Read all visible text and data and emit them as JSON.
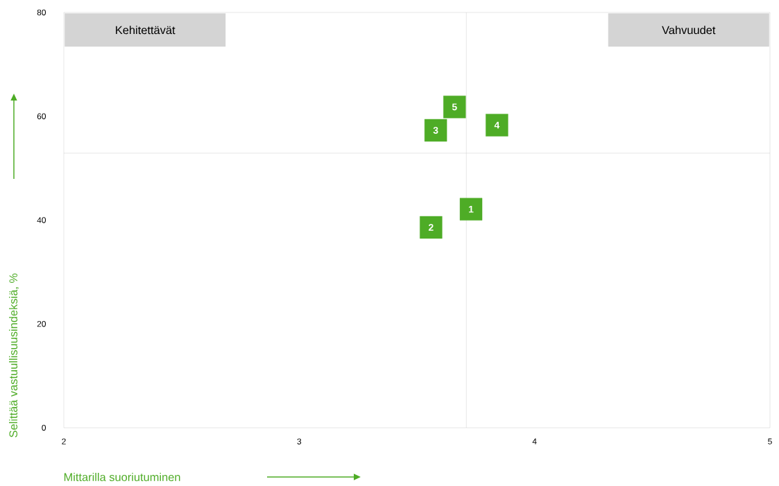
{
  "chart_data": {
    "type": "scatter",
    "xlabel": "Mittarilla suoriutuminen",
    "ylabel": "Selittää vastuullisuusindeksiä, %",
    "x": [
      3.73,
      3.56,
      3.58,
      3.84,
      3.66
    ],
    "values": [
      42.1,
      38.6,
      57.3,
      58.3,
      61.8
    ],
    "color": "#4eac26",
    "marker": "square",
    "xlim": [
      2,
      5
    ],
    "xticks": [
      2,
      3,
      4,
      5
    ],
    "ylim": [
      0,
      80
    ],
    "yticks": [
      0,
      20,
      40,
      60,
      80
    ],
    "ref_lines": [
      {
        "axis": "x",
        "value": 3.71,
        "color": "#bfbfbf"
      },
      {
        "axis": "y",
        "value": 52.9,
        "color": "#bfbfbf"
      }
    ],
    "annotations": [
      "Kehitettävät",
      "Vahvuudet",
      {
        "text": "1",
        "x": 3.73,
        "y": 42.1
      },
      {
        "text": "2",
        "x": 3.56,
        "y": 38.6
      },
      {
        "text": "3",
        "x": 3.58,
        "y": 57.3
      },
      {
        "text": "4",
        "x": 3.84,
        "y": 58.3
      },
      {
        "text": "5",
        "x": 3.66,
        "y": 61.8
      }
    ],
    "grid": false
  }
}
